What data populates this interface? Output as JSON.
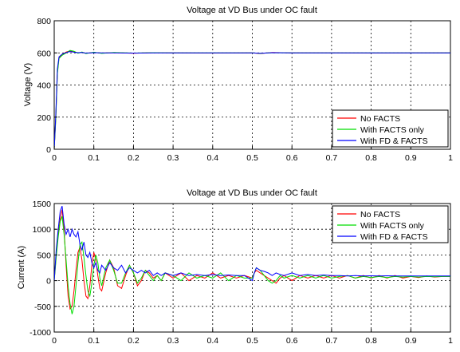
{
  "chart_data": [
    {
      "type": "line",
      "title": "Voltage at VD Bus under OC fault",
      "xlabel": "",
      "ylabel": "Voltage (V)",
      "xlim": [
        0,
        1
      ],
      "ylim": [
        0,
        800
      ],
      "xticks": [
        "0",
        "0.1",
        "0.2",
        "0.3",
        "0.4",
        "0.5",
        "0.6",
        "0.7",
        "0.8",
        "0.9",
        "1"
      ],
      "yticks": [
        "0",
        "200",
        "400",
        "600",
        "800"
      ],
      "grid": true,
      "legend_position": "bottom-right",
      "series": [
        {
          "name": "No FACTS",
          "color": "#ff0000",
          "x": [
            0,
            0.004,
            0.008,
            0.012,
            0.02,
            0.03,
            0.04,
            0.05,
            0.06,
            0.07,
            0.08,
            0.1,
            0.12,
            0.15,
            0.2,
            0.25,
            0.3,
            0.4,
            0.5,
            0.52,
            0.55,
            0.6,
            0.7,
            0.8,
            0.9,
            1.0
          ],
          "y": [
            0,
            200,
            480,
            570,
            590,
            605,
            612,
            608,
            600,
            603,
            598,
            602,
            599,
            601,
            598,
            601,
            600,
            599,
            600,
            596,
            602,
            600,
            600,
            599,
            600,
            600
          ]
        },
        {
          "name": "With FACTS only",
          "color": "#00dd00",
          "x": [
            0,
            0.004,
            0.008,
            0.012,
            0.02,
            0.03,
            0.04,
            0.05,
            0.06,
            0.07,
            0.08,
            0.1,
            0.12,
            0.15,
            0.2,
            0.25,
            0.3,
            0.4,
            0.5,
            0.52,
            0.55,
            0.6,
            0.7,
            0.8,
            0.9,
            1.0
          ],
          "y": [
            0,
            190,
            470,
            565,
            585,
            600,
            615,
            610,
            598,
            605,
            596,
            604,
            597,
            602,
            599,
            601,
            600,
            600,
            600,
            597,
            601,
            600,
            600,
            600,
            600,
            600
          ]
        },
        {
          "name": "With FD & FACTS",
          "color": "#0000ff",
          "x": [
            0,
            0.004,
            0.008,
            0.012,
            0.02,
            0.03,
            0.04,
            0.05,
            0.06,
            0.07,
            0.08,
            0.1,
            0.12,
            0.15,
            0.2,
            0.25,
            0.3,
            0.4,
            0.5,
            0.52,
            0.55,
            0.6,
            0.7,
            0.8,
            0.9,
            1.0
          ],
          "y": [
            0,
            220,
            500,
            575,
            592,
            602,
            608,
            604,
            601,
            602,
            599,
            601,
            600,
            600,
            599,
            600,
            600,
            600,
            600,
            598,
            601,
            600,
            600,
            600,
            600,
            600
          ]
        }
      ]
    },
    {
      "type": "line",
      "title": "Voltage at VD Bus under OC fault",
      "xlabel": "",
      "ylabel": "Current (A)",
      "xlim": [
        0,
        1
      ],
      "ylim": [
        -1000,
        1500
      ],
      "xticks": [
        "0",
        "0.1",
        "0.2",
        "0.3",
        "0.4",
        "0.5",
        "0.6",
        "0.7",
        "0.8",
        "0.9",
        "1"
      ],
      "yticks": [
        "-1000",
        "-500",
        "0",
        "500",
        "1000",
        "1500"
      ],
      "grid": true,
      "legend_position": "top-right",
      "series": [
        {
          "name": "No FACTS",
          "color": "#ff0000",
          "x": [
            0,
            0.005,
            0.01,
            0.015,
            0.02,
            0.025,
            0.03,
            0.035,
            0.04,
            0.045,
            0.05,
            0.055,
            0.06,
            0.065,
            0.07,
            0.075,
            0.08,
            0.085,
            0.09,
            0.095,
            0.1,
            0.105,
            0.11,
            0.115,
            0.12,
            0.13,
            0.14,
            0.15,
            0.16,
            0.17,
            0.18,
            0.19,
            0.2,
            0.21,
            0.22,
            0.23,
            0.24,
            0.25,
            0.26,
            0.27,
            0.28,
            0.3,
            0.32,
            0.34,
            0.36,
            0.38,
            0.4,
            0.42,
            0.44,
            0.46,
            0.48,
            0.5,
            0.505,
            0.51,
            0.52,
            0.53,
            0.54,
            0.55,
            0.56,
            0.57,
            0.58,
            0.6,
            0.62,
            0.64,
            0.66,
            0.68,
            0.7,
            0.72,
            0.74,
            0.76,
            0.78,
            0.8,
            0.82,
            0.84,
            0.86,
            0.88,
            0.9,
            0.92,
            0.94,
            0.96,
            0.98,
            1.0
          ],
          "y": [
            0,
            500,
            900,
            1200,
            1380,
            1000,
            300,
            -300,
            -550,
            -500,
            -200,
            200,
            550,
            650,
            400,
            0,
            -300,
            -350,
            -100,
            300,
            550,
            400,
            100,
            -150,
            -200,
            150,
            400,
            250,
            -100,
            -150,
            100,
            300,
            150,
            -100,
            0,
            200,
            150,
            50,
            100,
            0,
            150,
            50,
            150,
            0,
            100,
            50,
            150,
            50,
            100,
            50,
            100,
            50,
            150,
            200,
            150,
            100,
            50,
            0,
            -50,
            50,
            100,
            0,
            100,
            50,
            100,
            50,
            100,
            50,
            100,
            50,
            100,
            50,
            100,
            50,
            100,
            50,
            80,
            60,
            90,
            70,
            80,
            80
          ]
        },
        {
          "name": "With FACTS only",
          "color": "#00dd00",
          "x": [
            0,
            0.005,
            0.01,
            0.015,
            0.02,
            0.025,
            0.03,
            0.035,
            0.04,
            0.045,
            0.05,
            0.055,
            0.06,
            0.065,
            0.07,
            0.075,
            0.08,
            0.085,
            0.09,
            0.095,
            0.1,
            0.105,
            0.11,
            0.115,
            0.12,
            0.13,
            0.14,
            0.15,
            0.16,
            0.17,
            0.18,
            0.19,
            0.2,
            0.21,
            0.22,
            0.23,
            0.24,
            0.25,
            0.26,
            0.27,
            0.28,
            0.3,
            0.32,
            0.34,
            0.36,
            0.38,
            0.4,
            0.42,
            0.44,
            0.46,
            0.48,
            0.5,
            0.505,
            0.51,
            0.52,
            0.53,
            0.54,
            0.55,
            0.56,
            0.57,
            0.58,
            0.6,
            0.62,
            0.64,
            0.66,
            0.68,
            0.7,
            0.72,
            0.74,
            0.76,
            0.78,
            0.8,
            0.82,
            0.84,
            0.86,
            0.88,
            0.9,
            0.92,
            0.94,
            0.96,
            0.98,
            1.0
          ],
          "y": [
            0,
            450,
            850,
            1150,
            1250,
            900,
            400,
            -100,
            -450,
            -650,
            -500,
            -100,
            350,
            700,
            750,
            450,
            100,
            -200,
            -300,
            -50,
            300,
            500,
            350,
            50,
            -100,
            250,
            400,
            200,
            -50,
            -50,
            150,
            300,
            150,
            -50,
            50,
            200,
            100,
            0,
            100,
            0,
            150,
            100,
            0,
            150,
            50,
            100,
            50,
            150,
            0,
            100,
            50,
            50,
            150,
            250,
            200,
            100,
            0,
            -50,
            0,
            100,
            50,
            100,
            50,
            100,
            50,
            100,
            50,
            80,
            100,
            50,
            80,
            60,
            80,
            60,
            80,
            70,
            80,
            70,
            80,
            75,
            80,
            80
          ]
        },
        {
          "name": "With FD & FACTS",
          "color": "#0000ff",
          "x": [
            0,
            0.005,
            0.01,
            0.015,
            0.02,
            0.025,
            0.03,
            0.035,
            0.04,
            0.045,
            0.05,
            0.055,
            0.06,
            0.065,
            0.07,
            0.075,
            0.08,
            0.085,
            0.09,
            0.095,
            0.1,
            0.105,
            0.11,
            0.115,
            0.12,
            0.13,
            0.14,
            0.15,
            0.16,
            0.17,
            0.18,
            0.19,
            0.2,
            0.21,
            0.22,
            0.23,
            0.24,
            0.25,
            0.26,
            0.27,
            0.28,
            0.3,
            0.32,
            0.34,
            0.36,
            0.38,
            0.4,
            0.42,
            0.44,
            0.46,
            0.48,
            0.5,
            0.505,
            0.51,
            0.52,
            0.53,
            0.54,
            0.55,
            0.56,
            0.57,
            0.58,
            0.6,
            0.62,
            0.64,
            0.66,
            0.68,
            0.7,
            0.72,
            0.74,
            0.76,
            0.78,
            0.8,
            0.82,
            0.84,
            0.86,
            0.88,
            0.9,
            0.92,
            0.94,
            0.96,
            0.98,
            1.0
          ],
          "y": [
            0,
            600,
            1000,
            1350,
            1450,
            1100,
            900,
            1000,
            850,
            1000,
            900,
            850,
            950,
            700,
            600,
            750,
            500,
            450,
            550,
            350,
            250,
            350,
            200,
            150,
            300,
            200,
            350,
            250,
            200,
            300,
            150,
            250,
            200,
            150,
            200,
            150,
            200,
            100,
            150,
            100,
            150,
            100,
            150,
            100,
            120,
            100,
            120,
            100,
            110,
            100,
            100,
            0,
            150,
            250,
            200,
            180,
            150,
            100,
            150,
            120,
            100,
            150,
            100,
            120,
            100,
            110,
            100,
            100,
            90,
            100,
            90,
            95,
            90,
            95,
            90,
            90,
            90,
            90,
            90,
            90,
            90,
            90
          ]
        }
      ]
    }
  ]
}
